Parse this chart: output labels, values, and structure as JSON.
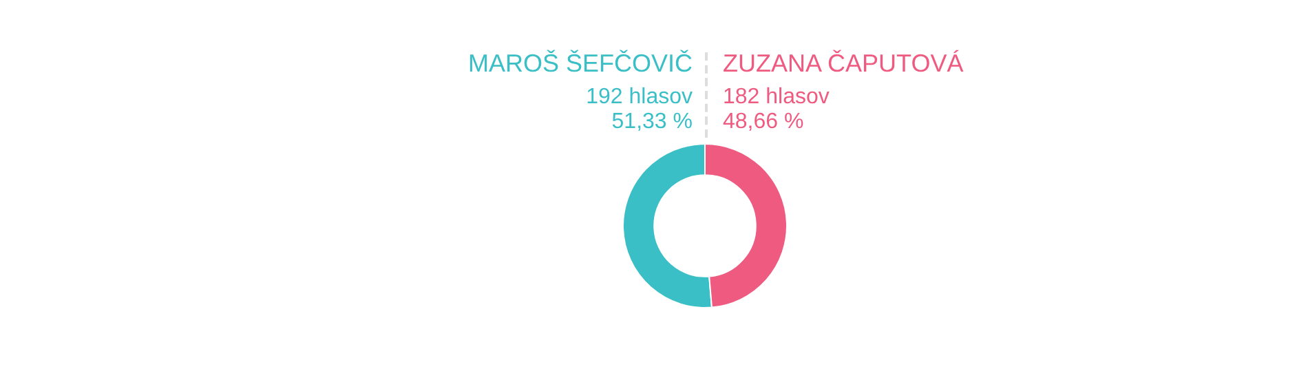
{
  "chart_data": {
    "type": "donut",
    "categories": [
      "MAROŠ ŠEFČOVIČ",
      "ZUZANA ČAPUTOVÁ"
    ],
    "values": [
      192,
      182
    ],
    "colors": [
      "#3bbfc7",
      "#ef5b80"
    ],
    "value_labels": [
      "192 hlasov",
      "182 hlasov"
    ],
    "annotations": [
      "51,33 %",
      "48,66 %"
    ]
  }
}
